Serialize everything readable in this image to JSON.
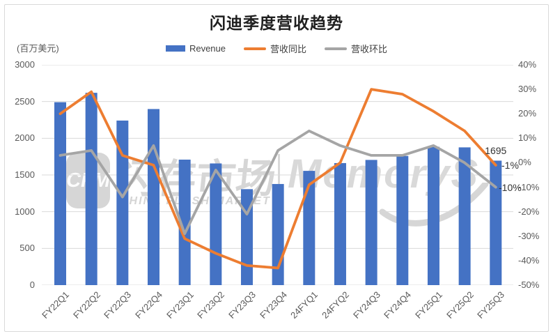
{
  "title": "闪迪季度营收趋势",
  "y_axis_unit": "(百万美元)",
  "legend": [
    {
      "label": "Revenue",
      "color": "#4472C4",
      "type": "bar"
    },
    {
      "label": "营收同比",
      "color": "#ED7D31",
      "type": "line"
    },
    {
      "label": "营收环比",
      "color": "#A5A5A5",
      "type": "line"
    }
  ],
  "watermark": {
    "cfm_logo_text": "CFM",
    "cn_name": "闪存市场",
    "en_name": "CHINA FLASH MARKET",
    "brand": "MemoryS"
  },
  "chart_data": {
    "type": "bar",
    "subtype": "bar-line-combo",
    "title": "闪迪季度营收趋势",
    "categories": [
      "FY22Q1",
      "FY22Q2",
      "FY22Q3",
      "FY22Q4",
      "FY23Q1",
      "FY23Q2",
      "FY23Q3",
      "FY23Q4",
      "24FYQ1",
      "24FYQ2",
      "FY24Q3",
      "FY24Q4",
      "FY25Q1",
      "FY25Q2",
      "FY25Q3"
    ],
    "series": [
      {
        "name": "Revenue",
        "type": "bar",
        "axis": "left",
        "color": "#4472C4",
        "values": [
          2491,
          2619,
          2241,
          2398,
          1709,
          1657,
          1307,
          1377,
          1556,
          1662,
          1705,
          1759,
          1884,
          1876,
          1695
        ]
      },
      {
        "name": "营收同比",
        "type": "line",
        "axis": "right",
        "color": "#ED7D31",
        "values_pct": [
          20,
          29,
          3,
          -1,
          -31,
          -37,
          -42,
          -43,
          -9,
          0,
          30,
          28,
          21,
          13,
          -1
        ]
      },
      {
        "name": "营收环比",
        "type": "line",
        "axis": "right",
        "color": "#A5A5A5",
        "values_pct": [
          3,
          5,
          -14,
          7,
          -29,
          -3,
          -21,
          5,
          13,
          7,
          3,
          3,
          7,
          0,
          -10
        ]
      }
    ],
    "left_axis": {
      "unit": "(百万美元)",
      "min": 0,
      "max": 3000,
      "step": 500,
      "ticks": [
        "3000",
        "2500",
        "2000",
        "1500",
        "1000",
        "500",
        "0"
      ]
    },
    "right_axis": {
      "min": -50,
      "max": 40,
      "step": 10,
      "ticks": [
        "40%",
        "30%",
        "20%",
        "10%",
        "0%",
        "-10%",
        "-20%",
        "-30%",
        "-40%",
        "-50%"
      ]
    },
    "grid": "horizontal",
    "legend_position": "top",
    "data_labels": {
      "revenue_last": "1695",
      "yoy_last": "-1%",
      "qoq_last": "-10%"
    },
    "colors": {
      "bar": "#4472C4",
      "yoy_line": "#ED7D31",
      "qoq_line": "#A5A5A5",
      "gridline": "#D9D9D9",
      "axis_text": "#595959",
      "title_text": "#1F1F1F"
    }
  }
}
